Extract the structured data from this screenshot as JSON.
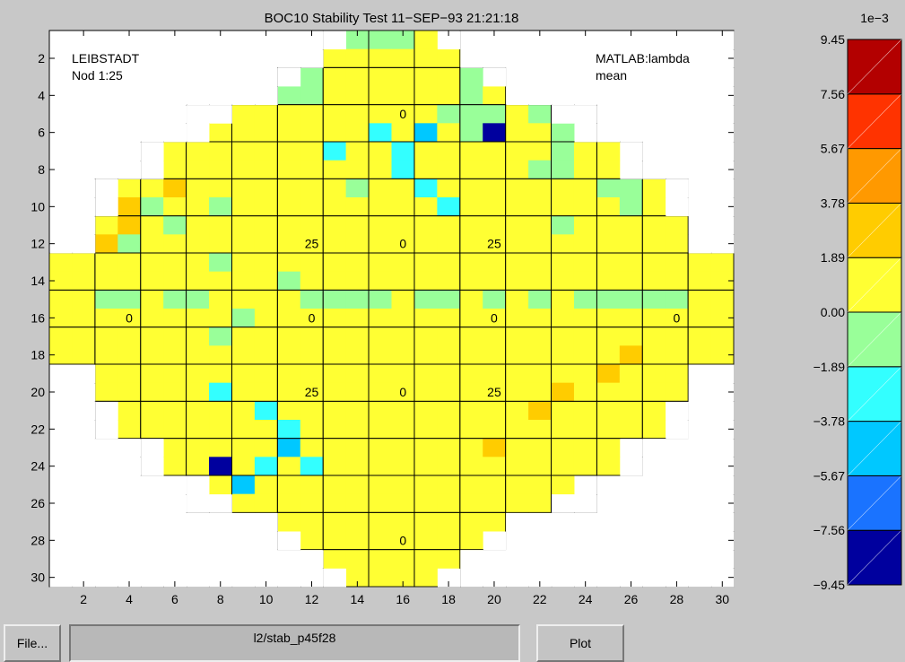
{
  "window": {
    "title": "BOC10 Stability Test  11−SEP−93 21:21:18"
  },
  "annotations": {
    "top_left_1": "LEIBSTADT",
    "top_left_2": "Nod 1:25",
    "top_right_1": "MATLAB:lambda",
    "top_right_2": "mean"
  },
  "bottom_bar": {
    "file_label": "File...",
    "path_value": "l2/stab_p45f28",
    "plot_label": "Plot"
  },
  "colors": {
    "background": "#c8c8c8",
    "levels": [
      "#00009e",
      "#1a73ff",
      "#00c8ff",
      "#33ffff",
      "#99ff99",
      "#ffff33",
      "#ffcc00",
      "#ff9900",
      "#ff3300",
      "#b30000"
    ]
  },
  "chart_data": [
    {
      "type": "heatmap",
      "title": "BOC10 Stability Test  11−SEP−93 21:21:18",
      "x_ticks": [
        "2",
        "4",
        "6",
        "8",
        "10",
        "12",
        "14",
        "16",
        "18",
        "20",
        "22",
        "24",
        "26",
        "28",
        "30"
      ],
      "y_ticks": [
        "2",
        "4",
        "6",
        "8",
        "10",
        "12",
        "14",
        "16",
        "18",
        "20",
        "22",
        "24",
        "26",
        "28",
        "30"
      ],
      "xlim": [
        0.5,
        30.5
      ],
      "ylim": [
        30.5,
        0.5
      ],
      "grid": "on",
      "row_extents": [
        [
          14,
          17
        ],
        [
          13,
          18
        ],
        [
          12,
          19
        ],
        [
          11,
          20
        ],
        [
          9,
          22
        ],
        [
          8,
          23
        ],
        [
          6,
          25
        ],
        [
          6,
          25
        ],
        [
          4,
          27
        ],
        [
          4,
          27
        ],
        [
          3,
          28
        ],
        [
          3,
          28
        ],
        [
          1,
          30
        ],
        [
          1,
          30
        ],
        [
          1,
          30
        ],
        [
          1,
          30
        ],
        [
          1,
          30
        ],
        [
          1,
          30
        ],
        [
          3,
          28
        ],
        [
          3,
          28
        ],
        [
          4,
          27
        ],
        [
          4,
          27
        ],
        [
          6,
          25
        ],
        [
          6,
          25
        ],
        [
          8,
          23
        ],
        [
          9,
          22
        ],
        [
          11,
          20
        ],
        [
          12,
          19
        ],
        [
          13,
          18
        ],
        [
          14,
          17
        ]
      ],
      "level_rows": [
        "                                                            ",
        "5                                        5                  ",
        "5 5                 5     5 5 5 5                           ",
        "5 5 5 5 5               5 5 5 5                             ",
        "5 5 5 5 5 5 4   5 5   5 5 5 5 5 5                           ",
        "5 5 5 5   5 5 5   5 5 5 5 5 3 5 2 5   0                     ",
        "5 5   5 6 5 5 5 5     5 3 5 5 3 5 5 5 5 5                   ",
        "5 5 5 5   5 5 5 5 5 5 5 5 5 5 3 5 5 5 5 5                   ",
        "5 5   5 5 6 5 5 5   5 5 5   5 5 3 5 5   5 5 5 5             ",
        "5 5 5 6   5 5   5 5 5 5 5   5 5 5 3   5 5 5 5 5 5           ",
        "5 5 5 6 5   5 5 5 5   5 5     5 5 5 5 5 5 5   5 5 5 5 5     ",
        "5 5 6   5 5   5 5 5 5 5 5 5 5 5 5 5 5 5 5 5 5 5 5 5 5 5     ",
        "5 5 5 5 5 5 5   5 5 5 5 5 5 5 5 5 5 5 5 5 5 5 5 5 5 5 5 5 5 5",
        "5 5 5 5 5 5 5 5 5 5   5 5 5 5 5 5 5 5 5 5 5 5 5 5 5 5 5 5 5 5",
        "",
        "5 5 5 5 5 5 5 5   5 5 5 5 5 5 5 5 5 5 5 5 5 5 5 5 5 5 5 5 5 5",
        "5 5 5 5 5 5 5   5 5 5 5 5 5 5 5 5 5 5 5 5 5 5 5 5 5 5 5 5 5 5",
        "5 5 5 5 5 5 5 5 5 5 5 5 5 5 5 5 5 5 5 5 5 5 5 5 5 6 5 5 5 5",
        "5 5 5 5 5 5 5 5 5 5 5 5 5 5 5 5 5 5 5 5 5 5 5 5 6 5 5 5 5 5",
        "5 5 5 5 5 5 5 3 5 5 5 5 5 5 5 5 5 5 5 5 5 5 6 5 5 5 5 5 5 5",
        "5 5 5 5 5 5 5 5 5 3 5 5 5 5 5 5 5 5 5 5 5 6 5 5 5 5 5 5 5 5",
        "5 5 5 5 5 5 5 5 5 5 3 5 5 5 5 5 5 5 5 5 5 5 5 5 5 5 5 5 5 5",
        "5 5 5 5 5 5 5 5 5 5 2 5 5 5 5 5 5 5 5 6 5 5 5 5 5 5 5 5 5 5",
        "5 5 5 5 5 5 5 0 5 3 5 3 5 5 5 5 5 5 5 5 5 5 5 5 5 5 5 5 5 5",
        "5 5 5 5 5 5 5 5 2 5 5 5 5 5 5 5 5 5 5 5 5 5 5 5 5 5 5 5 5 5",
        "5 5 5 5 5 5 5 5 5 5 5 5 5 5 5 5 5 5 5 5 5 5 5 5 5 5 5 5 5 5",
        "5 5 5 5 5 5 5 5 5 5 5 5 5 5 5 5 5 5 5 5 5 5 5 5 5 5 5 5 5 5",
        "5 5 5 5 5 5 5 5 5 5 5 5 5 5 5 5 5 5 5 5 5 5 5 5 5 5 5 5 5 5",
        "5 5 5 5 5 5 5 5 5 5 5 5 5 5 5 5 5 5 5 5 5 5 5 5 5 5 5 5 5 5",
        "5 5 5 5 5 5 5 5 5 5 5 5 5 5 5 5 5 5 5 5 5 5 5 5 5 5 5 5 5 5"
      ],
      "cell_labels": [
        {
          "x": 15.5,
          "y": 4.5,
          "text": "0"
        },
        {
          "x": 11.5,
          "y": 11.5,
          "text": "25"
        },
        {
          "x": 15.5,
          "y": 11.5,
          "text": "0"
        },
        {
          "x": 19.5,
          "y": 11.5,
          "text": "25"
        },
        {
          "x": 3.5,
          "y": 15.5,
          "text": "0"
        },
        {
          "x": 11.5,
          "y": 15.5,
          "text": "0"
        },
        {
          "x": 19.5,
          "y": 15.5,
          "text": "0"
        },
        {
          "x": 27.5,
          "y": 15.5,
          "text": "0"
        },
        {
          "x": 11.5,
          "y": 19.5,
          "text": "25"
        },
        {
          "x": 15.5,
          "y": 19.5,
          "text": "0"
        },
        {
          "x": 19.5,
          "y": 19.5,
          "text": "25"
        },
        {
          "x": 15.5,
          "y": 27.5,
          "text": "0"
        }
      ]
    },
    {
      "type": "colorbar",
      "scale_label": "1e−3",
      "tick_labels": [
        "9.45",
        "7.56",
        "5.67",
        "3.78",
        "1.89",
        "0.00",
        "−1.89",
        "−3.78",
        "−5.67",
        "−7.56",
        "−9.45"
      ],
      "values": [
        9.45,
        7.56,
        5.67,
        3.78,
        1.89,
        0.0,
        -1.89,
        -3.78,
        -5.67,
        -7.56,
        -9.45
      ]
    }
  ]
}
